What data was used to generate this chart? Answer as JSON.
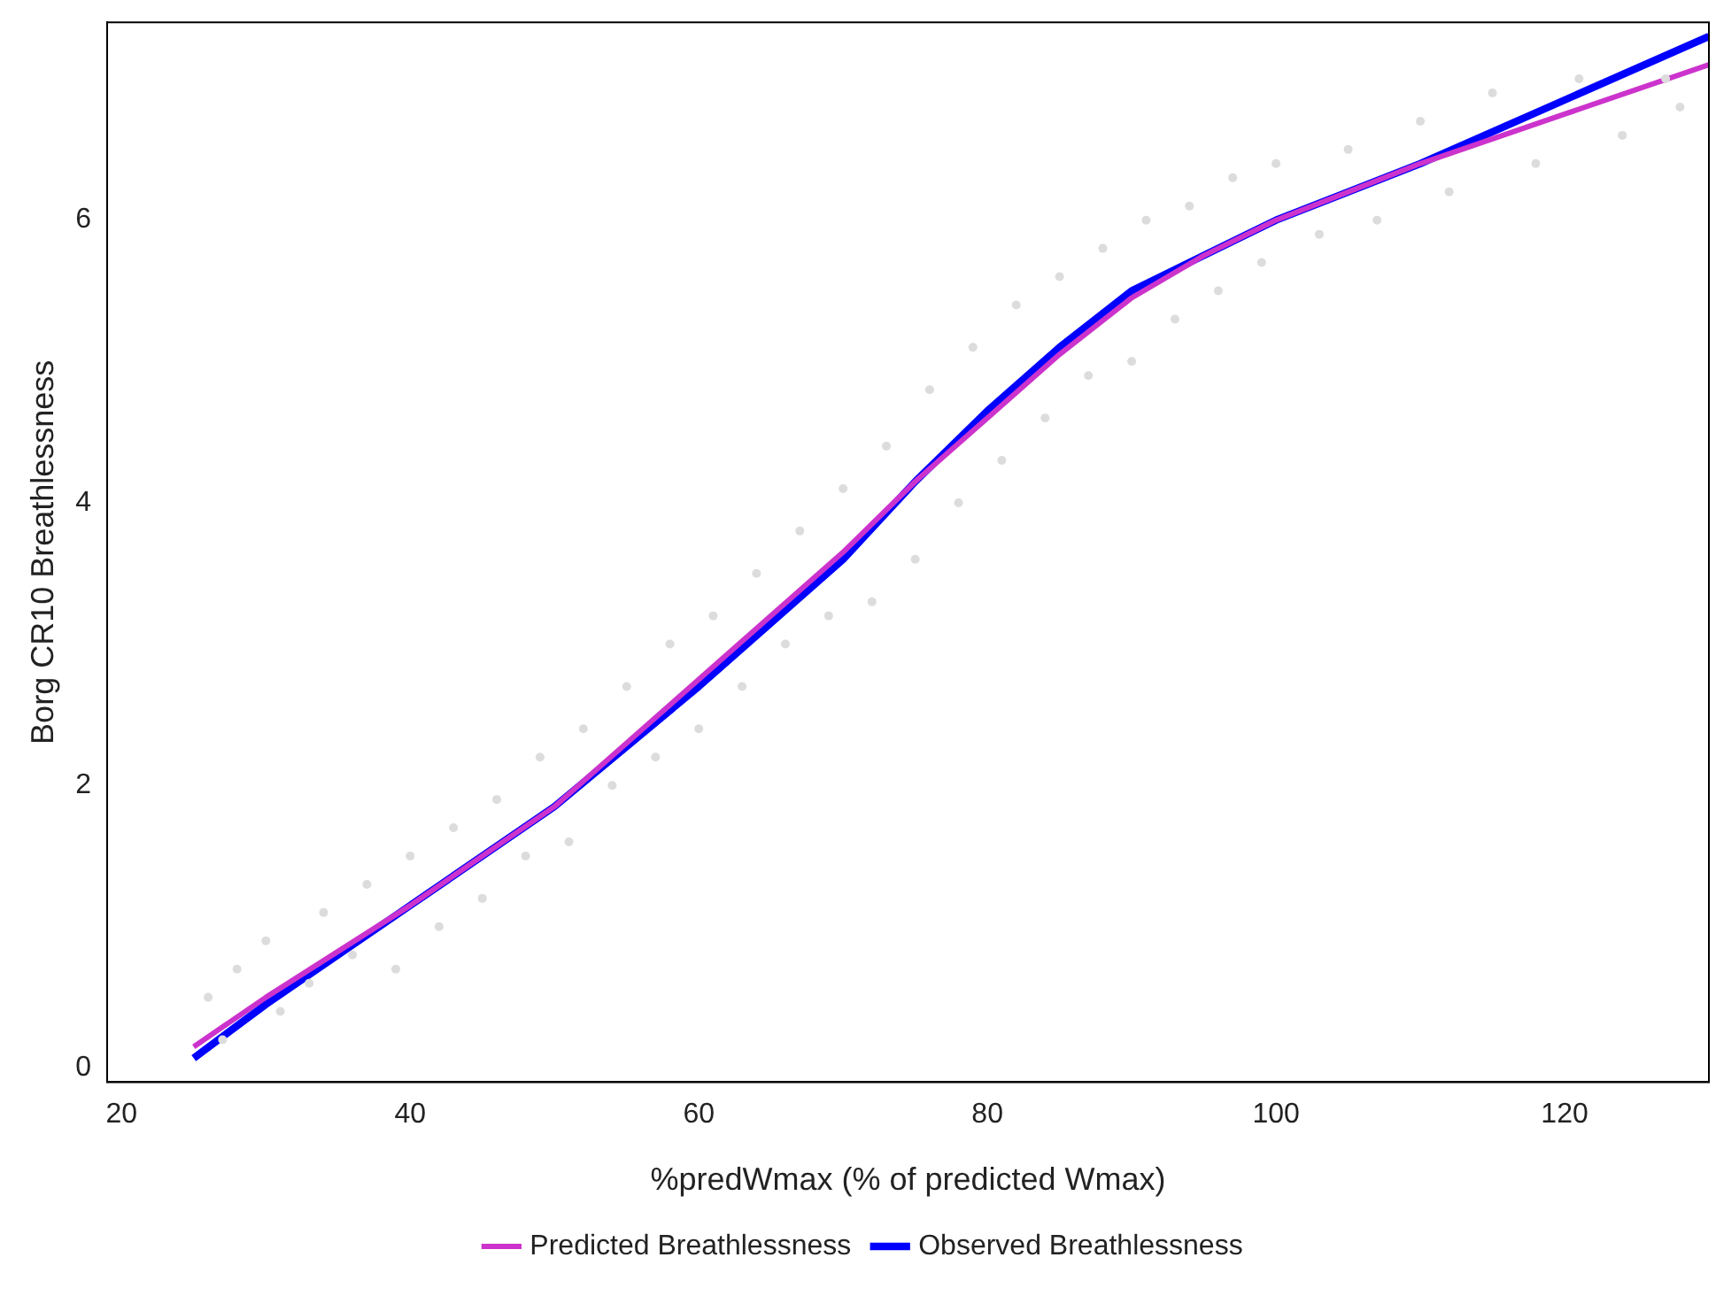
{
  "chart_data": {
    "type": "line",
    "xlabel": "%predWmax (% of predicted Wmax)",
    "ylabel": "Borg CR10 Breathlessness",
    "xlim": [
      19,
      130
    ],
    "xticks": [
      20,
      40,
      60,
      80,
      100,
      120
    ],
    "ylim": [
      -0.1,
      7.4
    ],
    "yticks": [
      0,
      2,
      4,
      6
    ],
    "grid": false,
    "legend": "bottom",
    "series": [
      {
        "type": "scatter",
        "marker": "circle",
        "color": "#dcdcdc",
        "x": [
          26,
          27,
          28,
          30,
          31,
          33,
          34,
          36,
          37,
          39,
          40,
          42,
          43,
          45,
          46,
          48,
          49,
          51,
          52,
          54,
          55,
          57,
          58,
          60,
          61,
          63,
          64,
          66,
          67,
          69,
          70,
          72,
          73,
          75,
          76,
          78,
          79,
          81,
          82,
          84,
          85,
          87,
          88,
          90,
          91,
          93,
          94,
          96,
          97,
          99,
          100,
          103,
          105,
          107,
          110,
          112,
          115,
          118,
          121,
          124,
          127,
          128
        ],
        "values": [
          0.5,
          0.2,
          0.7,
          0.9,
          0.4,
          0.6,
          1.1,
          0.8,
          1.3,
          0.7,
          1.5,
          1.0,
          1.7,
          1.2,
          1.9,
          1.5,
          2.2,
          1.6,
          2.4,
          2.0,
          2.7,
          2.2,
          3.0,
          2.4,
          3.2,
          2.7,
          3.5,
          3.0,
          3.8,
          3.2,
          4.1,
          3.3,
          4.4,
          3.6,
          4.8,
          4.0,
          5.1,
          4.3,
          5.4,
          4.6,
          5.6,
          4.9,
          5.8,
          5.0,
          6.0,
          5.3,
          6.1,
          5.5,
          6.3,
          5.7,
          6.4,
          5.9,
          6.5,
          6.0,
          6.7,
          6.2,
          6.9,
          6.4,
          7.0,
          6.6,
          7.0,
          6.8
        ]
      },
      {
        "name": "Predicted Breathlessness",
        "marker": "none",
        "line_style": "solid",
        "color": "#cc33cc",
        "x": [
          25,
          30,
          40,
          50,
          60,
          70,
          75,
          80,
          85,
          90,
          95,
          100,
          110,
          120,
          130
        ],
        "values": [
          0.15,
          0.5,
          1.15,
          1.85,
          2.75,
          3.65,
          4.15,
          4.6,
          5.05,
          5.45,
          5.75,
          6.0,
          6.4,
          6.75,
          7.1
        ]
      },
      {
        "name": "Observed Breathlessness",
        "marker": "none",
        "line_style": "solid",
        "color": "#0000ff",
        "x": [
          25,
          30,
          40,
          50,
          60,
          70,
          75,
          80,
          85,
          90,
          95,
          100,
          110,
          120,
          130
        ],
        "values": [
          0.07,
          0.45,
          1.15,
          1.85,
          2.7,
          3.6,
          4.15,
          4.65,
          5.1,
          5.5,
          5.75,
          6.0,
          6.4,
          6.85,
          7.3
        ]
      }
    ]
  }
}
